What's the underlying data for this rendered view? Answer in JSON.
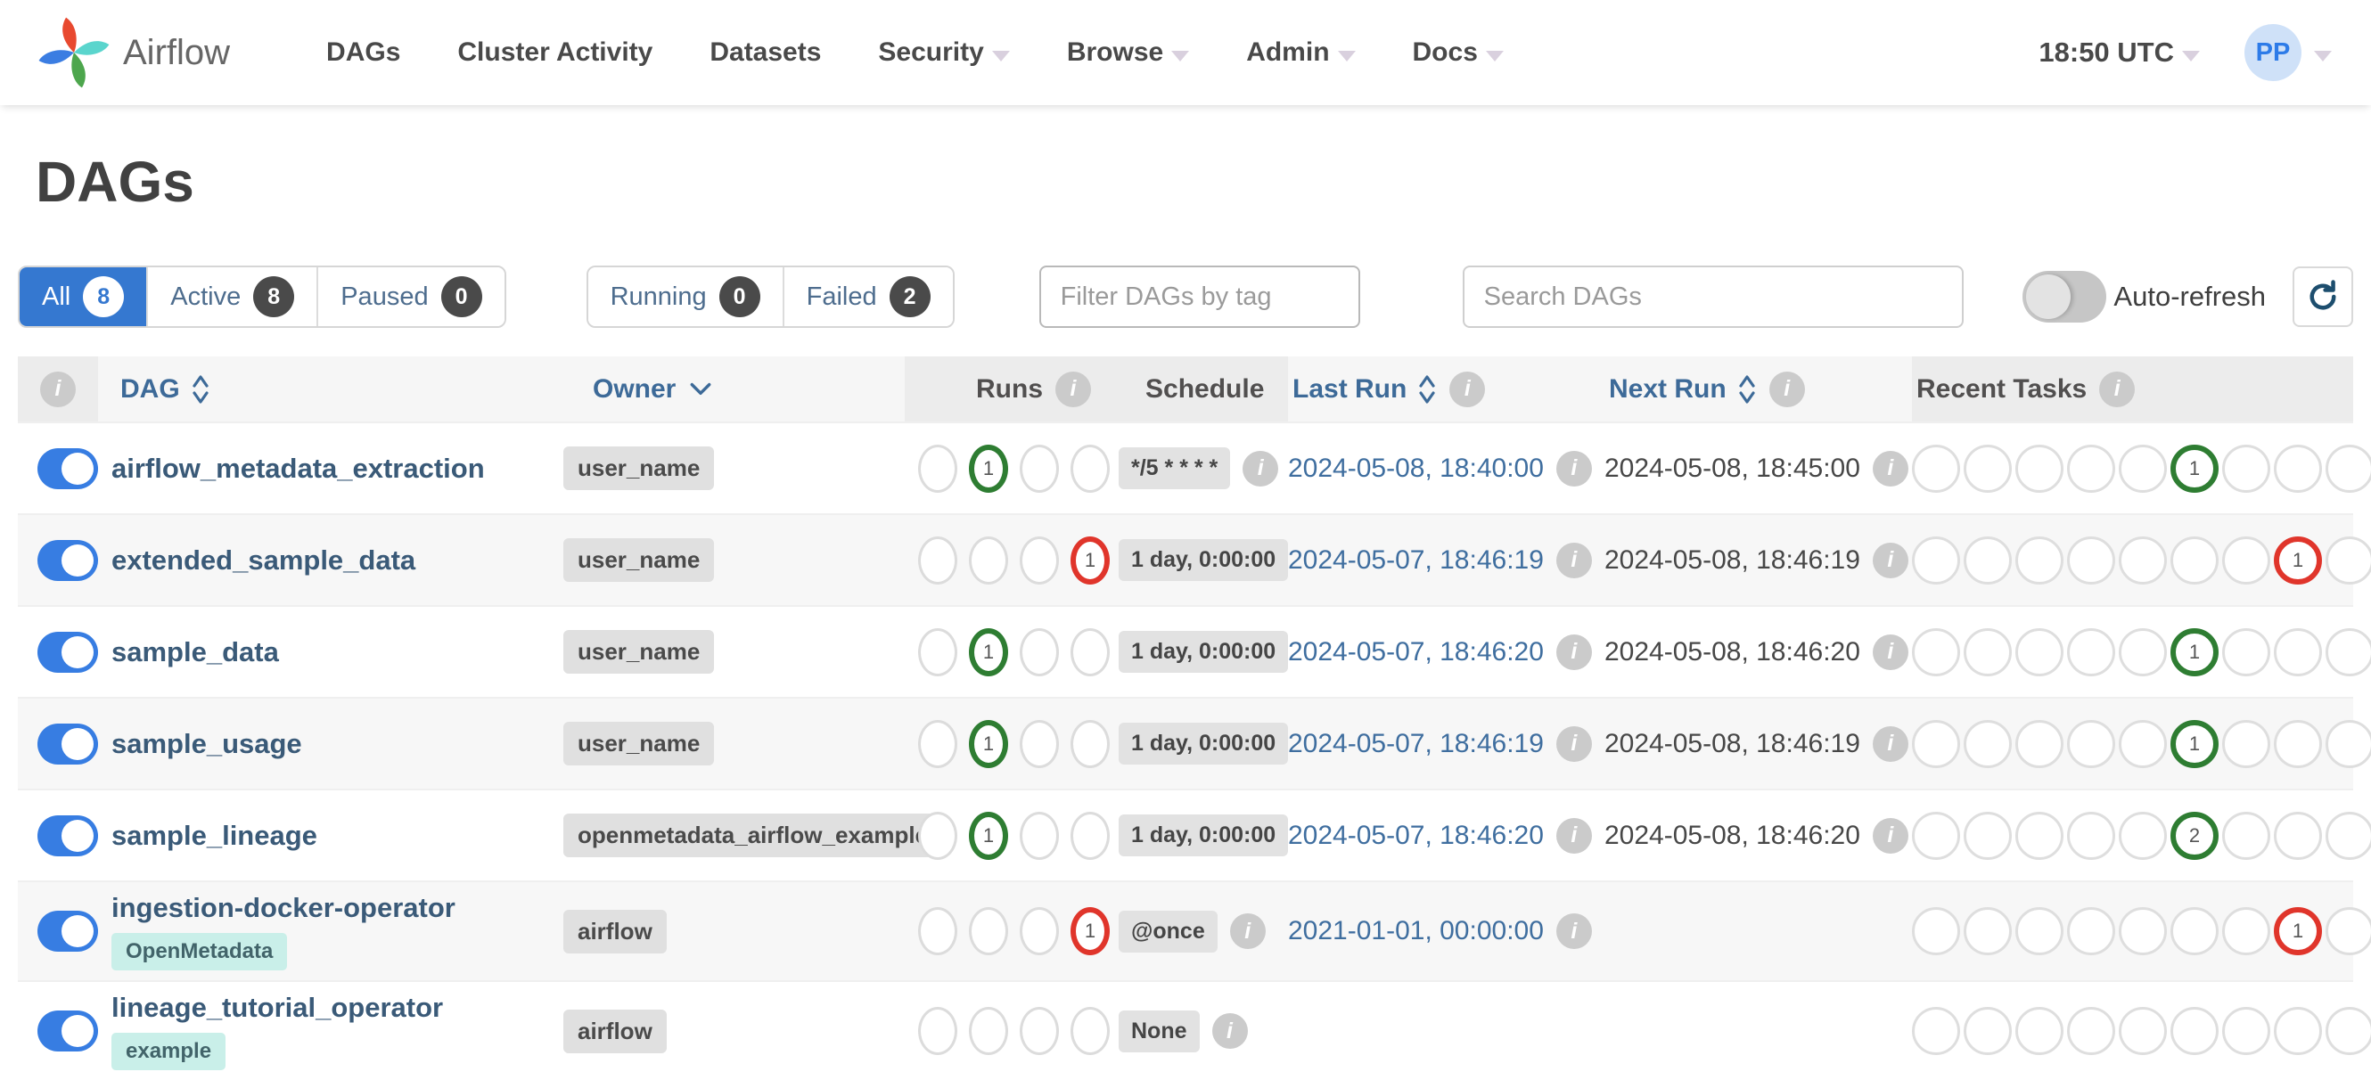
{
  "colors": {
    "accent_blue": "#3578d0",
    "toggle_blue": "#377de2",
    "success_green": "#2e7d32",
    "failed_red": "#e0352b",
    "tag_teal_bg": "#c9efe9",
    "link_blue": "#3f6e9f"
  },
  "nav": {
    "brand": "Airflow",
    "items": [
      {
        "label": "DAGs",
        "caret": false
      },
      {
        "label": "Cluster Activity",
        "caret": false
      },
      {
        "label": "Datasets",
        "caret": false
      },
      {
        "label": "Security",
        "caret": true
      },
      {
        "label": "Browse",
        "caret": true
      },
      {
        "label": "Admin",
        "caret": true
      },
      {
        "label": "Docs",
        "caret": true
      }
    ],
    "clock": "18:50 UTC",
    "avatar": "PP"
  },
  "page": {
    "title": "DAGs"
  },
  "filters": {
    "state_tabs": [
      {
        "label": "All",
        "count": "8",
        "active": true
      },
      {
        "label": "Active",
        "count": "8",
        "active": false
      },
      {
        "label": "Paused",
        "count": "0",
        "active": false
      }
    ],
    "run_tabs": [
      {
        "label": "Running",
        "count": "0",
        "active": false
      },
      {
        "label": "Failed",
        "count": "2",
        "active": false
      }
    ],
    "tag_placeholder": "Filter DAGs by tag",
    "search_placeholder": "Search DAGs",
    "auto_refresh_label": "Auto-refresh"
  },
  "table": {
    "header": {
      "dag": "DAG",
      "owner": "Owner",
      "runs": "Runs",
      "schedule": "Schedule",
      "last_run": "Last Run",
      "next_run": "Next Run",
      "recent_tasks": "Recent Tasks"
    },
    "run_state_names": [
      "queued",
      "success",
      "running",
      "failed"
    ],
    "rows": [
      {
        "name": "airflow_metadata_extraction",
        "tags": [],
        "owner": "user_name",
        "enabled": true,
        "runs": [
          null,
          {
            "state": "success",
            "count": "1"
          },
          null,
          null
        ],
        "schedule": {
          "label": "*/5 * * * *",
          "info": true
        },
        "last_run": "2024-05-08, 18:40:00",
        "next_run": "2024-05-08, 18:45:00",
        "recent_tasks": [
          null,
          null,
          null,
          null,
          null,
          {
            "state": "success",
            "count": "1"
          },
          null,
          null,
          null
        ]
      },
      {
        "name": "extended_sample_data",
        "tags": [],
        "owner": "user_name",
        "enabled": true,
        "runs": [
          null,
          null,
          null,
          {
            "state": "failed",
            "count": "1"
          }
        ],
        "schedule": {
          "label": "1 day, 0:00:00",
          "info": false
        },
        "last_run": "2024-05-07, 18:46:19",
        "next_run": "2024-05-08, 18:46:19",
        "recent_tasks": [
          null,
          null,
          null,
          null,
          null,
          null,
          null,
          {
            "state": "failed",
            "count": "1"
          },
          null
        ]
      },
      {
        "name": "sample_data",
        "tags": [],
        "owner": "user_name",
        "enabled": true,
        "runs": [
          null,
          {
            "state": "success",
            "count": "1"
          },
          null,
          null
        ],
        "schedule": {
          "label": "1 day, 0:00:00",
          "info": false
        },
        "last_run": "2024-05-07, 18:46:20",
        "next_run": "2024-05-08, 18:46:20",
        "recent_tasks": [
          null,
          null,
          null,
          null,
          null,
          {
            "state": "success",
            "count": "1"
          },
          null,
          null,
          null
        ]
      },
      {
        "name": "sample_usage",
        "tags": [],
        "owner": "user_name",
        "enabled": true,
        "runs": [
          null,
          {
            "state": "success",
            "count": "1"
          },
          null,
          null
        ],
        "schedule": {
          "label": "1 day, 0:00:00",
          "info": false
        },
        "last_run": "2024-05-07, 18:46:19",
        "next_run": "2024-05-08, 18:46:19",
        "recent_tasks": [
          null,
          null,
          null,
          null,
          null,
          {
            "state": "success",
            "count": "1"
          },
          null,
          null,
          null
        ]
      },
      {
        "name": "sample_lineage",
        "tags": [],
        "owner": "openmetadata_airflow_example",
        "enabled": true,
        "runs": [
          null,
          {
            "state": "success",
            "count": "1"
          },
          null,
          null
        ],
        "schedule": {
          "label": "1 day, 0:00:00",
          "info": false
        },
        "last_run": "2024-05-07, 18:46:20",
        "next_run": "2024-05-08, 18:46:20",
        "recent_tasks": [
          null,
          null,
          null,
          null,
          null,
          {
            "state": "success",
            "count": "2"
          },
          null,
          null,
          null
        ]
      },
      {
        "name": "ingestion-docker-operator",
        "tags": [
          "OpenMetadata"
        ],
        "owner": "airflow",
        "enabled": true,
        "runs": [
          null,
          null,
          null,
          {
            "state": "failed",
            "count": "1"
          }
        ],
        "schedule": {
          "label": "@once",
          "info": true
        },
        "last_run": "2021-01-01, 00:00:00",
        "next_run": "",
        "recent_tasks": [
          null,
          null,
          null,
          null,
          null,
          null,
          null,
          {
            "state": "failed",
            "count": "1"
          },
          null
        ]
      },
      {
        "name": "lineage_tutorial_operator",
        "tags": [
          "example"
        ],
        "owner": "airflow",
        "enabled": true,
        "runs": [
          null,
          null,
          null,
          null
        ],
        "schedule": {
          "label": "None",
          "info": true
        },
        "last_run": "",
        "next_run": "",
        "recent_tasks": [
          null,
          null,
          null,
          null,
          null,
          null,
          null,
          null,
          null
        ]
      }
    ]
  }
}
